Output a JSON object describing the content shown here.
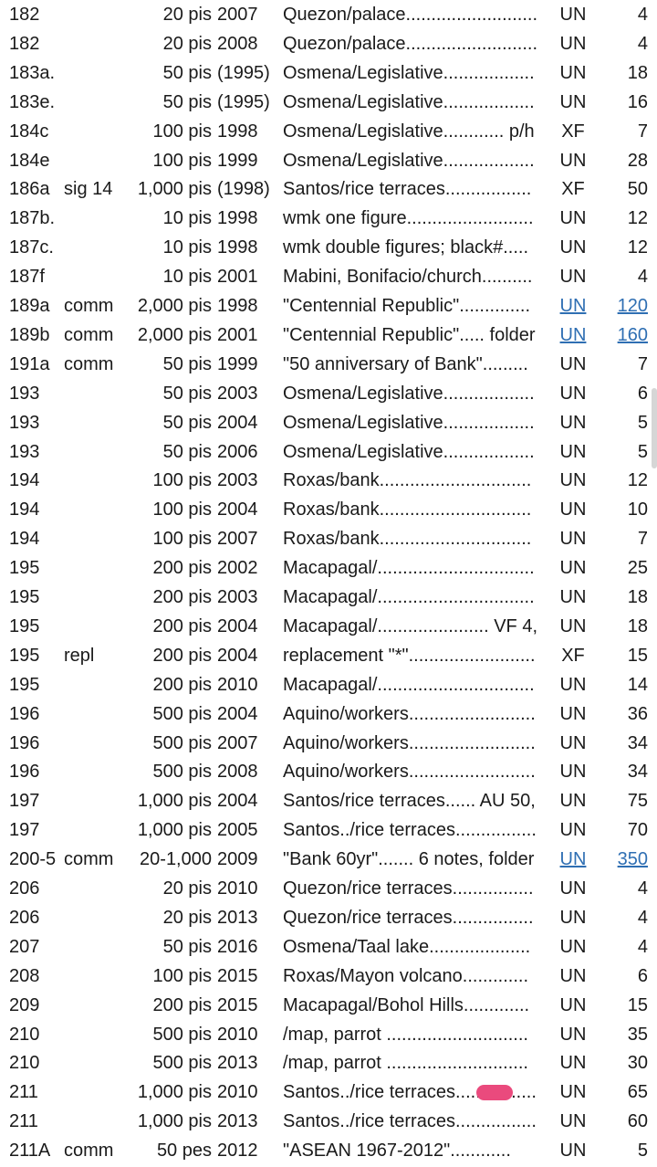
{
  "list": {
    "link_color": "#2f6fb3",
    "rows": [
      {
        "cells": [
          "182",
          "",
          "20 pis",
          "2007",
          "Quezon/palace..........................",
          "UN",
          "4"
        ]
      },
      {
        "cells": [
          "182",
          "",
          "20 pis",
          "2008",
          "Quezon/palace..........................",
          "UN",
          "4"
        ]
      },
      {
        "cells": [
          "183a.",
          "",
          "50 pis",
          "(1995)",
          "Osmena/Legislative..................",
          "UN",
          "18"
        ]
      },
      {
        "cells": [
          "183e.",
          "",
          "50 pis",
          "(1995)",
          "Osmena/Legislative..................",
          "UN",
          "16"
        ]
      },
      {
        "cells": [
          "184c",
          "",
          "100 pis",
          "1998",
          "Osmena/Legislative............ p/h",
          "XF",
          "7"
        ]
      },
      {
        "cells": [
          "184e",
          "",
          "100 pis",
          "1999",
          "Osmena/Legislative..................",
          "UN",
          "28"
        ]
      },
      {
        "cells": [
          "186a",
          "sig 14",
          "1,000 pis",
          "(1998)",
          "Santos/rice terraces.................",
          "XF",
          "50"
        ]
      },
      {
        "cells": [
          "187b.",
          "",
          "10 pis",
          "1998",
          "wmk one figure.........................",
          "UN",
          "12"
        ]
      },
      {
        "cells": [
          "187c.",
          "",
          "10 pis",
          "1998",
          "wmk double figures; black#.....",
          "UN",
          "12"
        ]
      },
      {
        "cells": [
          "187f",
          "",
          "10 pis",
          "2001",
          "Mabini, Bonifacio/church..........",
          "UN",
          "4"
        ]
      },
      {
        "cells": [
          "189a",
          "comm",
          "2,000 pis",
          "1998",
          "\"Centennial Republic\"..............",
          "UN",
          "120"
        ],
        "link": true
      },
      {
        "cells": [
          "189b",
          "comm",
          "2,000 pis",
          "2001",
          "\"Centennial Republic\"..... folder",
          "UN",
          "160"
        ],
        "link": true
      },
      {
        "cells": [
          "191a",
          "comm",
          "50 pis",
          "1999",
          "\"50 anniversary of Bank\".........",
          "UN",
          "7"
        ]
      },
      {
        "cells": [
          "193",
          "",
          "50 pis",
          "2003",
          "Osmena/Legislative..................",
          "UN",
          "6"
        ]
      },
      {
        "cells": [
          "193",
          "",
          "50 pis",
          "2004",
          "Osmena/Legislative..................",
          "UN",
          "5"
        ]
      },
      {
        "cells": [
          "193",
          "",
          "50 pis",
          "2006",
          "Osmena/Legislative..................",
          "UN",
          "5"
        ]
      },
      {
        "cells": [
          "194",
          "",
          "100 pis",
          "2003",
          "Roxas/bank..............................",
          "UN",
          "12"
        ]
      },
      {
        "cells": [
          "194",
          "",
          "100 pis",
          "2004",
          "Roxas/bank..............................",
          "UN",
          "10"
        ]
      },
      {
        "cells": [
          "194",
          "",
          "100 pis",
          "2007",
          "Roxas/bank..............................",
          "UN",
          "7"
        ]
      },
      {
        "cells": [
          "195",
          "",
          "200 pis",
          "2002",
          "Macapagal/...............................",
          "UN",
          "25"
        ]
      },
      {
        "cells": [
          "195",
          "",
          "200 pis",
          "2003",
          "Macapagal/...............................",
          "UN",
          "18"
        ]
      },
      {
        "cells": [
          "195",
          "",
          "200 pis",
          "2004",
          "Macapagal/...................... VF 4,",
          "UN",
          "18"
        ]
      },
      {
        "cells": [
          "195",
          "repl",
          "200 pis",
          "2004",
          "replacement \"*\".........................",
          "XF",
          "15"
        ]
      },
      {
        "cells": [
          "195",
          "",
          "200 pis",
          "2010",
          "Macapagal/...............................",
          "UN",
          "14"
        ]
      },
      {
        "cells": [
          "196",
          "",
          "500 pis",
          "2004",
          "Aquino/workers.........................",
          "UN",
          "36"
        ]
      },
      {
        "cells": [
          "196",
          "",
          "500 pis",
          "2007",
          "Aquino/workers.........................",
          "UN",
          "34"
        ]
      },
      {
        "cells": [
          "196",
          "",
          "500 pis",
          "2008",
          "Aquino/workers.........................",
          "UN",
          "34"
        ]
      },
      {
        "cells": [
          "197",
          "",
          "1,000 pis",
          "2004",
          "Santos/rice terraces...... AU 50,",
          "UN",
          "75"
        ]
      },
      {
        "cells": [
          "197",
          "",
          "1,000 pis",
          "2005",
          "Santos../rice terraces................",
          "UN",
          "70"
        ]
      },
      {
        "cells": [
          "200-5",
          "comm",
          "20-1,000",
          "2009",
          "\"Bank 60yr\"....... 6 notes, folder",
          "UN",
          "350"
        ],
        "link": true
      },
      {
        "cells": [
          "206",
          "",
          "20 pis",
          "2010",
          "Quezon/rice terraces................",
          "UN",
          "4"
        ]
      },
      {
        "cells": [
          "206",
          "",
          "20 pis",
          "2013",
          "Quezon/rice terraces................",
          "UN",
          "4"
        ]
      },
      {
        "cells": [
          "207",
          "",
          "50 pis",
          "2016",
          "Osmena/Taal lake....................",
          "UN",
          "4"
        ]
      },
      {
        "cells": [
          "208",
          "",
          "100 pis",
          "2015",
          "Roxas/Mayon volcano.............",
          "UN",
          "6"
        ]
      },
      {
        "cells": [
          "209",
          "",
          "200 pis",
          "2015",
          "Macapagal/Bohol Hills.............",
          "UN",
          "15"
        ]
      },
      {
        "cells": [
          "210",
          "",
          "500 pis",
          "2010",
          "/map, parrot ............................",
          "UN",
          "35"
        ]
      },
      {
        "cells": [
          "210",
          "",
          "500 pis",
          "2013",
          "/map, parrot ............................",
          "UN",
          "30"
        ]
      },
      {
        "cells": [
          "211",
          "",
          "1,000 pis",
          "2010",
          "Santos../rice terraces................",
          "UN",
          "65"
        ]
      },
      {
        "cells": [
          "211",
          "",
          "1,000 pis",
          "2013",
          "Santos../rice terraces................",
          "UN",
          "60"
        ]
      },
      {
        "cells": [
          "211A",
          "comm",
          "50 pes",
          "2012",
          "\"ASEAN 1967-2012\"............",
          "UN",
          "5"
        ]
      }
    ]
  }
}
